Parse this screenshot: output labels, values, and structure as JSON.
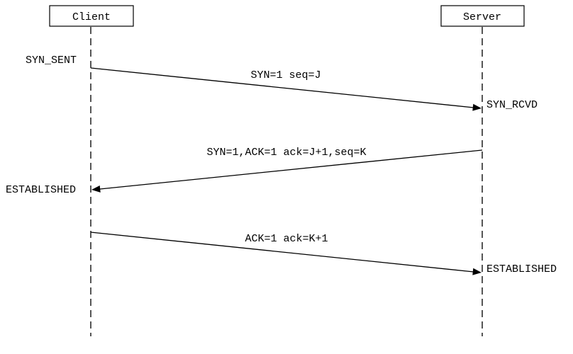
{
  "participants": {
    "client": "Client",
    "server": "Server"
  },
  "states": {
    "client_syn_sent": "SYN_SENT",
    "server_syn_rcvd": "SYN_RCVD",
    "client_established": "ESTABLISHED",
    "server_established": "ESTABLISHED"
  },
  "messages": [
    {
      "from": "client",
      "to": "server",
      "label": "SYN=1 seq=J"
    },
    {
      "from": "server",
      "to": "client",
      "label": "SYN=1,ACK=1 ack=J+1,seq=K"
    },
    {
      "from": "client",
      "to": "server",
      "label": "ACK=1 ack=K+1"
    }
  ],
  "colors": {
    "line": "#000000",
    "lifeline": "#555555",
    "background": "#ffffff"
  }
}
